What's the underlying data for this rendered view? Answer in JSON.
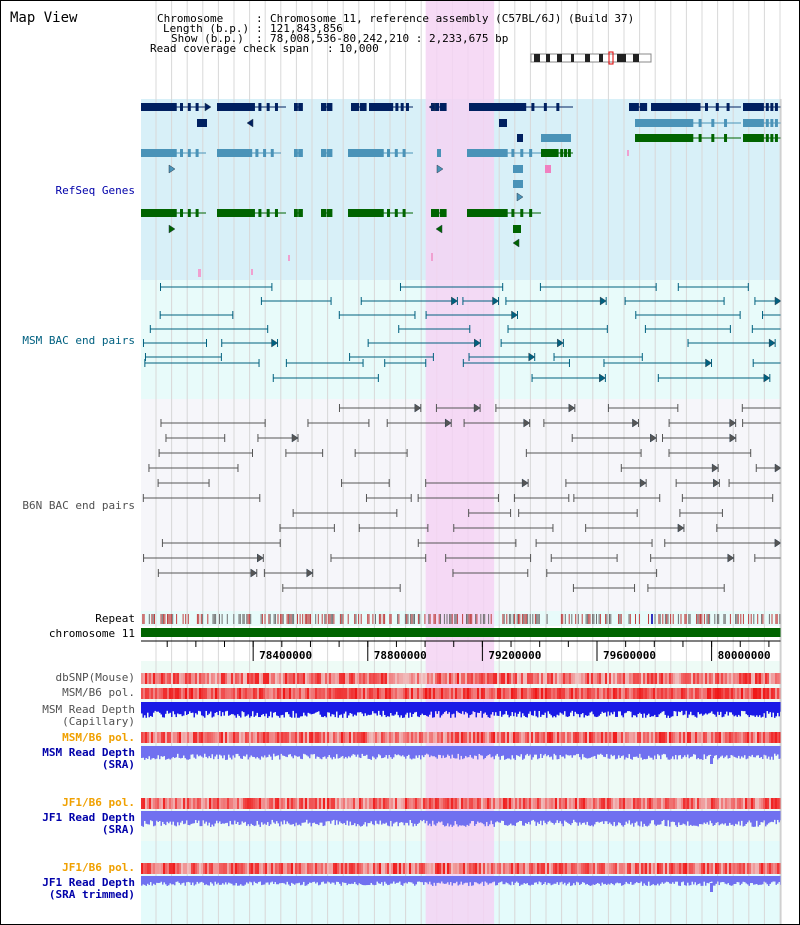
{
  "title": "Map View",
  "info": {
    "chromosome_label": "Chromosome",
    "chromosome_value": "Chromosome 11, reference assembly (C57BL/6J) (Build 37)",
    "length_label": "Length (b.p.)",
    "length_value": "121,843,856",
    "show_label": "Show (b.p.)",
    "show_value": "78,008,536-80,242,210 : 2,233,675 bp",
    "coverage_label": "Read coverage check span",
    "coverage_value": "10,000"
  },
  "tracks": {
    "refseq": "RefSeq Genes",
    "msm_bac": "MSM BAC end pairs",
    "b6n_bac": "B6N BAC end pairs",
    "repeat": "Repeat",
    "chromosome": "chromosome 11",
    "dbsnp": "dbSNP(Mouse)",
    "msm_b6_pol": "MSM/B6 pol.",
    "msm_depth_cap_1": "MSM Read Depth",
    "msm_depth_cap_2": "(Capillary)",
    "msm_b6_pol_sra": "MSM/B6 pol.",
    "msm_depth_sra_1": "MSM Read Depth",
    "msm_depth_sra_2": "(SRA)",
    "jf1_b6_pol": "JF1/B6 pol.",
    "jf1_depth_sra_1": "JF1 Read Depth",
    "jf1_depth_sra_2": "(SRA)",
    "jf1_b6_pol_trim": "JF1/B6 pol.",
    "jf1_depth_trim_1": "JF1 Read Depth",
    "jf1_depth_trim_2": "(SRA trimmed)"
  },
  "ruler": {
    "ticks": [
      {
        "pos": 78400000,
        "label": "78400000"
      },
      {
        "pos": 78800000,
        "label": "78800000"
      },
      {
        "pos": 79200000,
        "label": "79200000"
      },
      {
        "pos": 79600000,
        "label": "79600000"
      },
      {
        "pos": 80000000,
        "label": "80000000"
      }
    ]
  },
  "view": {
    "start": 78008536,
    "end": 80242210
  },
  "highlight": {
    "start": 79002000,
    "end": 79241000
  },
  "colors": {
    "refseq_bg": "#d8f0f8",
    "bac_bg": "#e8fbfa",
    "b6n_bg": "#f6f6fa",
    "highlight": "#f5d3f3",
    "refseq_dark": "#002060",
    "refseq_mid": "#4a93b8",
    "refseq_green": "#006400",
    "msm_bac": "#00607f",
    "b6n_bac": "#555555",
    "chromosome": "#006400",
    "pol": "#f04040",
    "depth_cap": "#1a1ae6",
    "depth_sra": "#7070f0",
    "label_blue": "#0000aa",
    "label_teal": "#006080",
    "label_grey": "#505050",
    "label_orange": "#f0a000"
  }
}
